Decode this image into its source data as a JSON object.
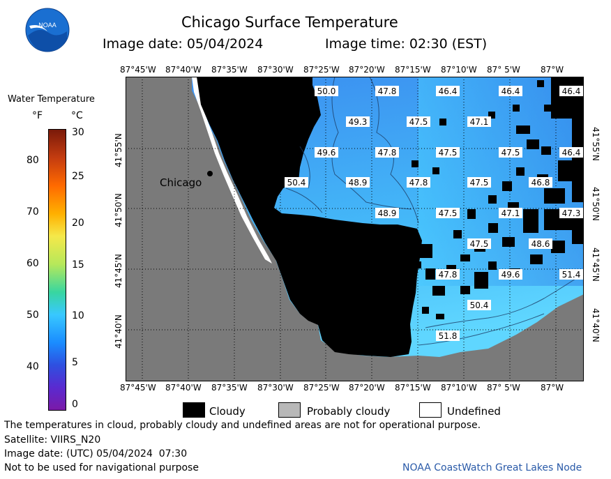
{
  "header": {
    "title": "Chicago Surface Temperature",
    "image_date": "Image date: 05/04/2024",
    "image_time": "Image time: 02:30 (EST)"
  },
  "logo": {
    "text": "NOAA"
  },
  "legend": {
    "title": "Water Temperature",
    "unit_f": "°F",
    "unit_c": "°C",
    "f_ticks": [
      "80",
      "70",
      "60",
      "50",
      "40"
    ],
    "c_ticks": [
      "30",
      "25",
      "20",
      "15",
      "10",
      "5",
      "0"
    ]
  },
  "axes": {
    "lon_top": [
      "87°45'W",
      "87°40'W",
      "87°35'W",
      "87°30'W",
      "87°25'W",
      "87°20'W",
      "87°15'W",
      "87°10'W",
      "87° 5'W",
      "87°W"
    ],
    "lon_bottom": [
      "87°45'W",
      "87°40'W",
      "87°35'W",
      "87°30'W",
      "87°25'W",
      "87°20'W",
      "87°15'W",
      "87°10'W",
      "87° 5'W",
      "87°W"
    ],
    "lat_left": [
      "41°55'N",
      "41°50'N",
      "41°45'N",
      "41°40'N"
    ],
    "lat_right": [
      "41°55'N",
      "41°50'N",
      "41°45'N",
      "41°40'N"
    ]
  },
  "map": {
    "city_label": "Chicago",
    "temps": [
      "50.0",
      "47.8",
      "46.4",
      "46.4",
      "46.4",
      "49.3",
      "47.5",
      "47.1",
      "49.6",
      "47.8",
      "47.5",
      "47.5",
      "46.4",
      "50.4",
      "48.9",
      "47.8",
      "47.5",
      "46.8",
      "48.9",
      "47.5",
      "47.1",
      "47.3",
      "47.5",
      "48.6",
      "47.8",
      "49.6",
      "51.4",
      "50.4",
      "51.8"
    ]
  },
  "key": {
    "cloudy": "Cloudy",
    "probably_cloudy": "Probably cloudy",
    "undefined": "Undefined"
  },
  "footer": {
    "disclaimer": "The temperatures in cloud, probably cloudy and undefined areas are not for operational purpose.",
    "satellite": "Satellite: VIIRS_N20",
    "utc_date": "Image date: (UTC) 05/04/2024  07:30",
    "nav_note": "Not to be used for navigational purpose",
    "credit": "NOAA CoastWatch Great Lakes Node"
  },
  "colors": {
    "land": "#7a7a7a",
    "cloud": "#000000",
    "water_cool": "#3b9cf0",
    "water_warm": "#5fd6ff",
    "credit": "#2a5aa8"
  }
}
